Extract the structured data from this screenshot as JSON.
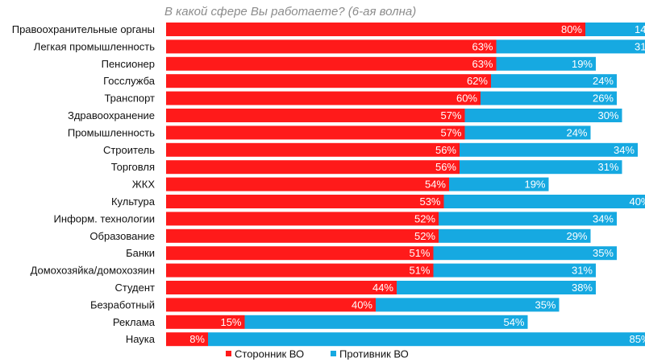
{
  "chart_data": {
    "type": "bar",
    "orientation": "horizontal",
    "stacked": true,
    "title": "В какой сфере Вы работаете? (6-ая волна)",
    "categories": [
      "Правоохранительные органы",
      "Легкая промышленность",
      "Пенсионер",
      "Госслужба",
      "Транспорт",
      "Здравоохранение",
      "Промышленность",
      "Строитель",
      "Торговля",
      "ЖКХ",
      "Культура",
      "Информ. технологии",
      "Образование",
      "Банки",
      "Домохозяйка/домохозяин",
      "Студент",
      "Безработный",
      "Реклама",
      "Наука"
    ],
    "series": [
      {
        "name": "Сторонник ВО",
        "color": "#ff1a1a",
        "values": [
          80,
          63,
          63,
          62,
          60,
          57,
          57,
          56,
          56,
          54,
          53,
          52,
          52,
          51,
          51,
          44,
          40,
          15,
          8
        ]
      },
      {
        "name": "Противник ВО",
        "color": "#16a9e1",
        "values": [
          14,
          31,
          19,
          24,
          26,
          30,
          24,
          34,
          31,
          19,
          40,
          34,
          29,
          35,
          31,
          38,
          35,
          54,
          85
        ]
      }
    ],
    "value_format": "{v}%",
    "legend_position": "bottom-center",
    "grid": false
  }
}
